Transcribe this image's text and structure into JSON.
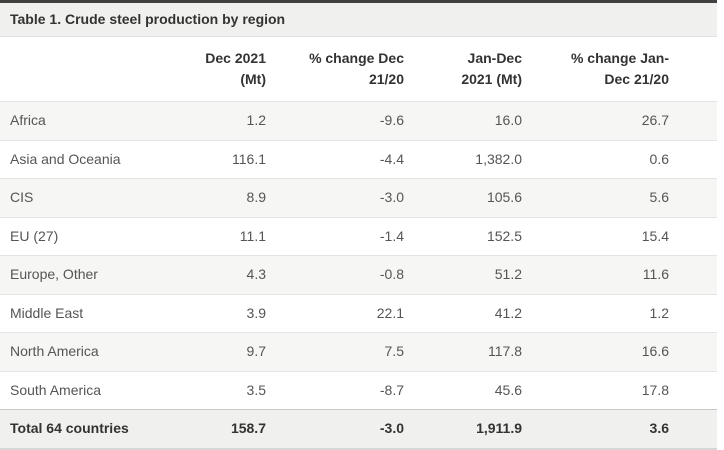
{
  "title": "Table 1. Crude steel production by region",
  "table": {
    "headers": [
      {
        "line1": "",
        "line2": ""
      },
      {
        "line1": "Dec 2021",
        "line2": "(Mt)"
      },
      {
        "line1": "% change Dec",
        "line2": "21/20"
      },
      {
        "line1": "Jan-Dec",
        "line2": "2021 (Mt)"
      },
      {
        "line1": "% change Jan-",
        "line2": "Dec 21/20"
      }
    ],
    "rows": [
      {
        "region": "Africa",
        "dec_2021_mt": "1.2",
        "pct_change_dec_21_20": "-9.6",
        "jan_dec_2021_mt": "16.0",
        "pct_change_jan_dec_21_20": "26.7"
      },
      {
        "region": "Asia and Oceania",
        "dec_2021_mt": "116.1",
        "pct_change_dec_21_20": "-4.4",
        "jan_dec_2021_mt": "1,382.0",
        "pct_change_jan_dec_21_20": "0.6"
      },
      {
        "region": "CIS",
        "dec_2021_mt": "8.9",
        "pct_change_dec_21_20": "-3.0",
        "jan_dec_2021_mt": "105.6",
        "pct_change_jan_dec_21_20": "5.6"
      },
      {
        "region": "EU (27)",
        "dec_2021_mt": "11.1",
        "pct_change_dec_21_20": "-1.4",
        "jan_dec_2021_mt": "152.5",
        "pct_change_jan_dec_21_20": "15.4"
      },
      {
        "region": "Europe, Other",
        "dec_2021_mt": "4.3",
        "pct_change_dec_21_20": "-0.8",
        "jan_dec_2021_mt": "51.2",
        "pct_change_jan_dec_21_20": "11.6"
      },
      {
        "region": "Middle East",
        "dec_2021_mt": "3.9",
        "pct_change_dec_21_20": "22.1",
        "jan_dec_2021_mt": "41.2",
        "pct_change_jan_dec_21_20": "1.2"
      },
      {
        "region": "North America",
        "dec_2021_mt": "9.7",
        "pct_change_dec_21_20": "7.5",
        "jan_dec_2021_mt": "117.8",
        "pct_change_jan_dec_21_20": "16.6"
      },
      {
        "region": "South America",
        "dec_2021_mt": "3.5",
        "pct_change_dec_21_20": "-8.7",
        "jan_dec_2021_mt": "45.6",
        "pct_change_jan_dec_21_20": "17.8"
      }
    ],
    "total_row": {
      "region": "Total 64 countries",
      "dec_2021_mt": "158.7",
      "pct_change_dec_21_20": "-3.0",
      "jan_dec_2021_mt": "1,911.9",
      "pct_change_jan_dec_21_20": "3.6"
    }
  },
  "colors": {
    "top_accent_border": "#414141",
    "panel_background": "#f0f0ee",
    "row_stripe_background": "#f6f6f5",
    "row_divider": "#e4e4e4",
    "total_row_divider": "#c8c8c8",
    "heading_text": "#333333",
    "body_text": "#555555"
  }
}
